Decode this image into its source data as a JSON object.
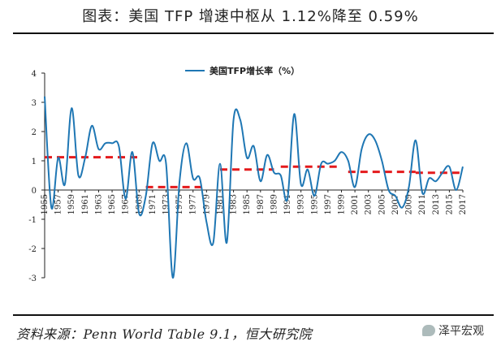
{
  "title": "图表：美国 TFP 增速中枢从 1.12%降至 0.59%",
  "source": "资料来源：Penn World Table 9.1，恒大研究院",
  "watermark": "泽平宏观",
  "colors": {
    "series": "#1f77b4",
    "mean": "#e41a1c"
  },
  "chart_data": {
    "type": "line",
    "legend": "美国TFP增长率（%）",
    "legend_position": "top-center",
    "ylim": [
      -3,
      4
    ],
    "yticks": [
      -3,
      -2,
      -1,
      0,
      1,
      2,
      3,
      4
    ],
    "xlim": [
      1955,
      2017
    ],
    "xticks": [
      1955,
      1957,
      1959,
      1961,
      1963,
      1965,
      1967,
      1969,
      1971,
      1973,
      1975,
      1977,
      1979,
      1981,
      1983,
      1985,
      1987,
      1989,
      1991,
      1993,
      1995,
      1997,
      1999,
      2001,
      2003,
      2005,
      2007,
      2009,
      2011,
      2013,
      2015,
      2017
    ],
    "grid": false,
    "series": [
      {
        "name": "美国TFP增长率（%）",
        "x": [
          1955,
          1956,
          1957,
          1958,
          1959,
          1960,
          1961,
          1962,
          1963,
          1964,
          1965,
          1966,
          1967,
          1968,
          1969,
          1970,
          1971,
          1972,
          1973,
          1974,
          1975,
          1976,
          1977,
          1978,
          1979,
          1980,
          1981,
          1982,
          1983,
          1984,
          1985,
          1986,
          1987,
          1988,
          1989,
          1990,
          1991,
          1992,
          1993,
          1994,
          1995,
          1996,
          1997,
          1998,
          1999,
          2000,
          2001,
          2002,
          2003,
          2004,
          2005,
          2006,
          2007,
          2008,
          2009,
          2010,
          2011,
          2012,
          2013,
          2014,
          2015,
          2016,
          2017
        ],
        "values": [
          3.2,
          -0.6,
          1.1,
          0.2,
          2.8,
          0.5,
          1.1,
          2.2,
          1.4,
          1.6,
          1.6,
          1.5,
          -0.3,
          1.3,
          -0.8,
          -0.2,
          1.6,
          1.0,
          0.9,
          -3.0,
          0.3,
          1.6,
          0.4,
          0.4,
          -1.1,
          -1.8,
          0.9,
          -1.8,
          2.4,
          2.4,
          1.1,
          1.5,
          0.3,
          1.2,
          0.6,
          0.5,
          -0.3,
          2.6,
          0.2,
          0.7,
          -0.2,
          0.9,
          0.9,
          1.0,
          1.3,
          1.0,
          0.1,
          1.4,
          1.9,
          1.7,
          1.0,
          0.0,
          -0.2,
          -0.6,
          0.1,
          1.7,
          -0.1,
          0.4,
          0.3,
          0.6,
          0.8,
          0.0,
          0.8
        ]
      }
    ],
    "mean_segments": [
      {
        "x_start": 1955,
        "x_end": 1969,
        "value": 1.12
      },
      {
        "x_start": 1970,
        "x_end": 1979,
        "value": 0.1
      },
      {
        "x_start": 1981,
        "x_end": 1989,
        "value": 0.7
      },
      {
        "x_start": 1990,
        "x_end": 1999,
        "value": 0.8
      },
      {
        "x_start": 2000,
        "x_end": 2010,
        "value": 0.62
      },
      {
        "x_start": 2010,
        "x_end": 2017,
        "value": 0.59
      }
    ]
  }
}
